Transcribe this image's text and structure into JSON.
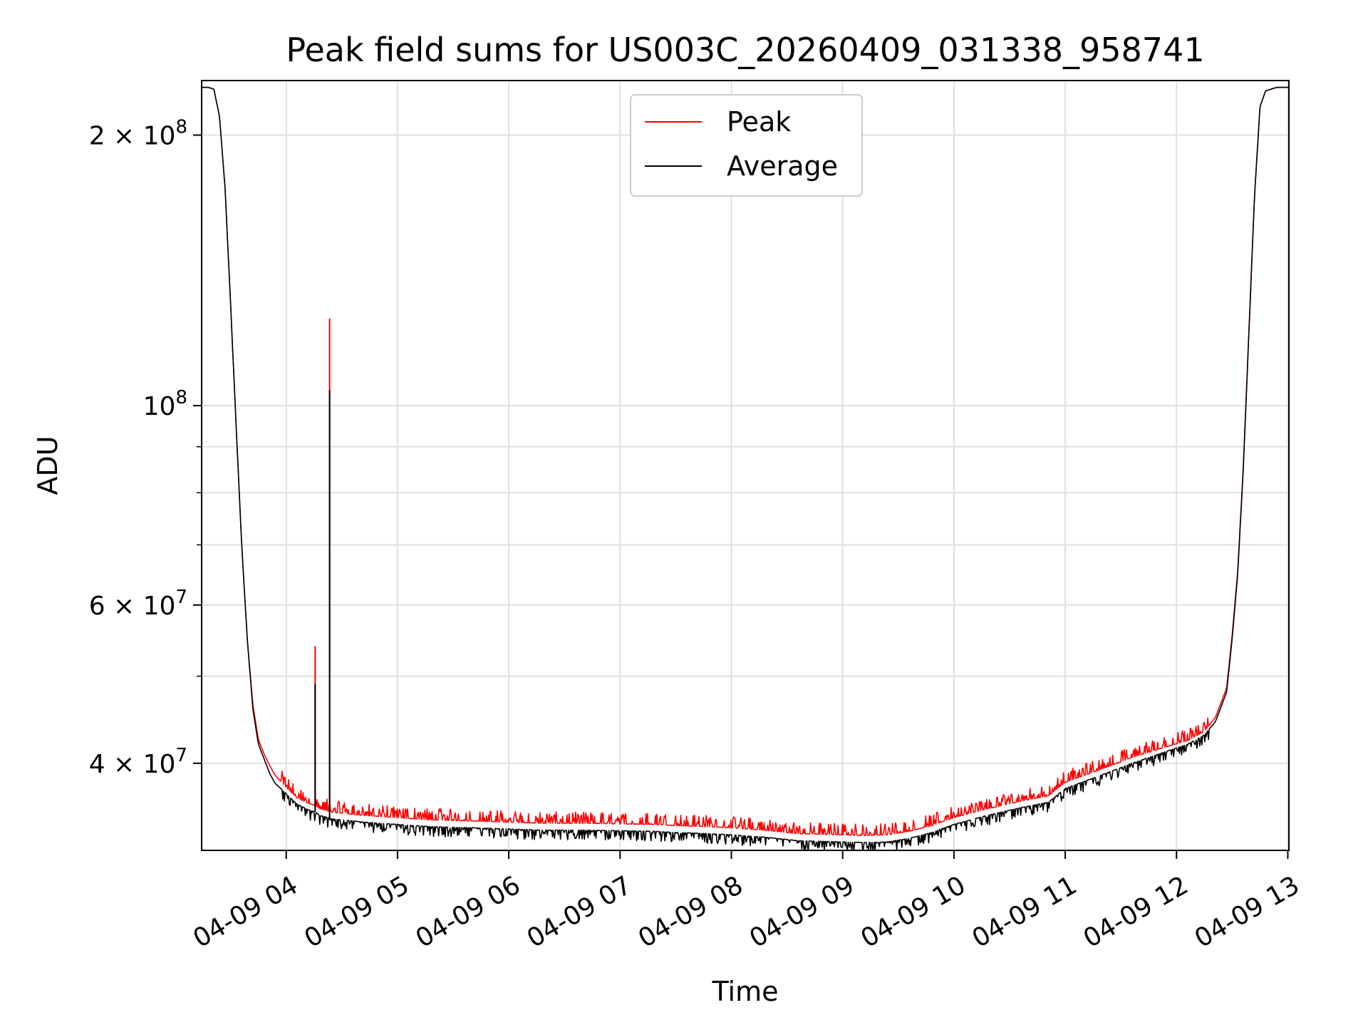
{
  "chart_data": {
    "type": "line",
    "title": "Peak field sums for US003C_20260409_031338_958741",
    "xlabel": "Time",
    "ylabel": "ADU",
    "x_unit": "hours (decimal hour of day, 2026-04-09)",
    "xlim": [
      3.24,
      13.01
    ],
    "ylim": [
      32000000,
      230000000
    ],
    "yscale": "log",
    "grid": true,
    "legend_position": "upper-center",
    "colors": {
      "Peak": "#ff0000",
      "Average": "#000000",
      "grid": "#e0e0e0"
    },
    "x_ticks": [
      {
        "value": 4,
        "label": "04-09 04"
      },
      {
        "value": 5,
        "label": "04-09 05"
      },
      {
        "value": 6,
        "label": "04-09 06"
      },
      {
        "value": 7,
        "label": "04-09 07"
      },
      {
        "value": 8,
        "label": "04-09 08"
      },
      {
        "value": 9,
        "label": "04-09 09"
      },
      {
        "value": 10,
        "label": "04-09 10"
      },
      {
        "value": 11,
        "label": "04-09 11"
      },
      {
        "value": 12,
        "label": "04-09 12"
      },
      {
        "value": 13,
        "label": "04-09 13"
      }
    ],
    "y_ticks": [
      {
        "value": 40000000,
        "base": "4 × 10",
        "exp": "7"
      },
      {
        "value": 60000000,
        "base": "6 × 10",
        "exp": "7"
      },
      {
        "value": 100000000,
        "base": "10",
        "exp": "8"
      },
      {
        "value": 200000000,
        "base": "2 × 10",
        "exp": "8"
      }
    ],
    "y_minor_ticks": [
      30000000,
      50000000,
      70000000,
      80000000,
      90000000
    ],
    "series": [
      {
        "name": "Average",
        "x": [
          3.24,
          3.3,
          3.35,
          3.4,
          3.45,
          3.5,
          3.55,
          3.6,
          3.65,
          3.7,
          3.75,
          3.8,
          3.85,
          3.9,
          3.95,
          4.0,
          4.1,
          4.2,
          4.26,
          4.3,
          4.38,
          4.4,
          4.5,
          4.7,
          5.0,
          5.3,
          5.7,
          6.0,
          6.3,
          6.7,
          7.0,
          7.3,
          7.5,
          7.8,
          8.0,
          8.3,
          8.6,
          9.0,
          9.2,
          9.4,
          9.6,
          9.8,
          10.0,
          10.3,
          10.6,
          10.85,
          11.0,
          11.3,
          11.6,
          11.9,
          12.1,
          12.25,
          12.35,
          12.45,
          12.5,
          12.55,
          12.6,
          12.65,
          12.7,
          12.75,
          12.8,
          12.9,
          13.01
        ],
        "y": [
          226000000,
          226000000,
          225000000,
          210000000,
          175000000,
          130000000,
          95000000,
          70000000,
          55000000,
          46000000,
          42000000,
          40500000,
          39000000,
          38000000,
          37500000,
          37000000,
          36000000,
          35500000,
          35300000,
          35000000,
          34800000,
          34700000,
          34600000,
          34400000,
          34200000,
          34000000,
          33900000,
          33800000,
          33700000,
          33700000,
          33650000,
          33600000,
          33500000,
          33400000,
          33300000,
          33100000,
          32800000,
          32700000,
          32650000,
          32700000,
          33000000,
          33500000,
          34200000,
          35000000,
          35700000,
          36200000,
          37500000,
          38700000,
          40000000,
          41200000,
          42000000,
          43000000,
          44500000,
          48000000,
          55000000,
          65000000,
          85000000,
          120000000,
          170000000,
          215000000,
          224000000,
          226000000,
          226000000
        ],
        "spikes": [
          {
            "x": 4.26,
            "y": 49000000
          },
          {
            "x": 4.39,
            "y": 104000000
          }
        ]
      },
      {
        "name": "Peak",
        "x": [
          3.24,
          3.3,
          3.35,
          3.4,
          3.45,
          3.5,
          3.55,
          3.6,
          3.65,
          3.7,
          3.75,
          3.8,
          3.85,
          3.9,
          3.95,
          4.0,
          4.1,
          4.2,
          4.26,
          4.3,
          4.38,
          4.4,
          4.5,
          4.7,
          5.0,
          5.3,
          5.7,
          6.0,
          6.3,
          6.7,
          7.0,
          7.3,
          7.5,
          7.8,
          8.0,
          8.3,
          8.6,
          9.0,
          9.2,
          9.4,
          9.6,
          9.8,
          10.0,
          10.3,
          10.6,
          10.85,
          11.0,
          11.3,
          11.6,
          11.9,
          12.1,
          12.25,
          12.35,
          12.45,
          12.5,
          12.55,
          12.6,
          12.65,
          12.7,
          12.75,
          12.8,
          12.9,
          13.01
        ],
        "y": [
          226000000,
          226000000,
          225000000,
          210000000,
          175000000,
          130000000,
          95000000,
          70000000,
          55000000,
          46500000,
          42500000,
          41000000,
          39800000,
          38800000,
          38200000,
          37600000,
          36600000,
          36100000,
          35900000,
          35600000,
          35400000,
          35300000,
          35200000,
          35000000,
          34800000,
          34600000,
          34500000,
          34400000,
          34300000,
          34300000,
          34250000,
          34200000,
          34100000,
          34000000,
          33900000,
          33700000,
          33400000,
          33300000,
          33250000,
          33300000,
          33600000,
          34100000,
          34800000,
          35600000,
          36300000,
          36800000,
          38100000,
          39300000,
          40600000,
          41700000,
          42400000,
          43400000,
          45000000,
          48500000,
          55500000,
          65500000,
          85500000,
          120500000,
          170500000,
          215000000,
          224000000,
          226000000,
          226000000
        ],
        "spikes": [
          {
            "x": 4.26,
            "y": 54000000
          },
          {
            "x": 4.39,
            "y": 125000000
          }
        ]
      }
    ]
  }
}
